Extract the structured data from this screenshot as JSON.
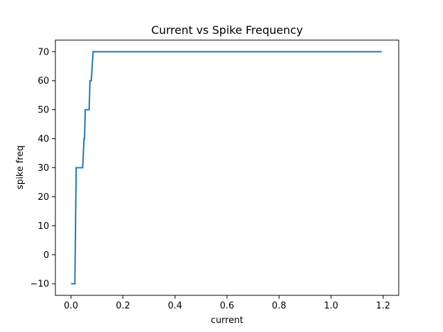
{
  "chart_data": {
    "type": "line",
    "title": "Current vs Spike Frequency",
    "xlabel": "current",
    "ylabel": "spike freq",
    "xlim": [
      -0.06,
      1.26
    ],
    "ylim": [
      -14,
      74
    ],
    "grid": false,
    "legend": "none",
    "line_color": "#1f77b4",
    "x_ticks": [
      {
        "value": 0.0,
        "label": "0.0"
      },
      {
        "value": 0.2,
        "label": "0.2"
      },
      {
        "value": 0.4,
        "label": "0.4"
      },
      {
        "value": 0.6,
        "label": "0.6"
      },
      {
        "value": 0.8,
        "label": "0.8"
      },
      {
        "value": 1.0,
        "label": "1.0"
      },
      {
        "value": 1.2,
        "label": "1.2"
      }
    ],
    "y_ticks": [
      {
        "value": -10,
        "label": "−10"
      },
      {
        "value": 0,
        "label": "0"
      },
      {
        "value": 10,
        "label": "10"
      },
      {
        "value": 20,
        "label": "20"
      },
      {
        "value": 30,
        "label": "30"
      },
      {
        "value": 40,
        "label": "40"
      },
      {
        "value": 50,
        "label": "50"
      },
      {
        "value": 60,
        "label": "60"
      },
      {
        "value": 70,
        "label": "70"
      }
    ],
    "series": [
      {
        "x": [
          0.0,
          0.015,
          0.02,
          0.045,
          0.05,
          0.052,
          0.055,
          0.07,
          0.073,
          0.078,
          0.085,
          1.195
        ],
        "values": [
          -10,
          -10,
          30,
          30,
          40,
          40,
          50,
          50,
          60,
          60,
          70,
          70
        ]
      }
    ]
  }
}
